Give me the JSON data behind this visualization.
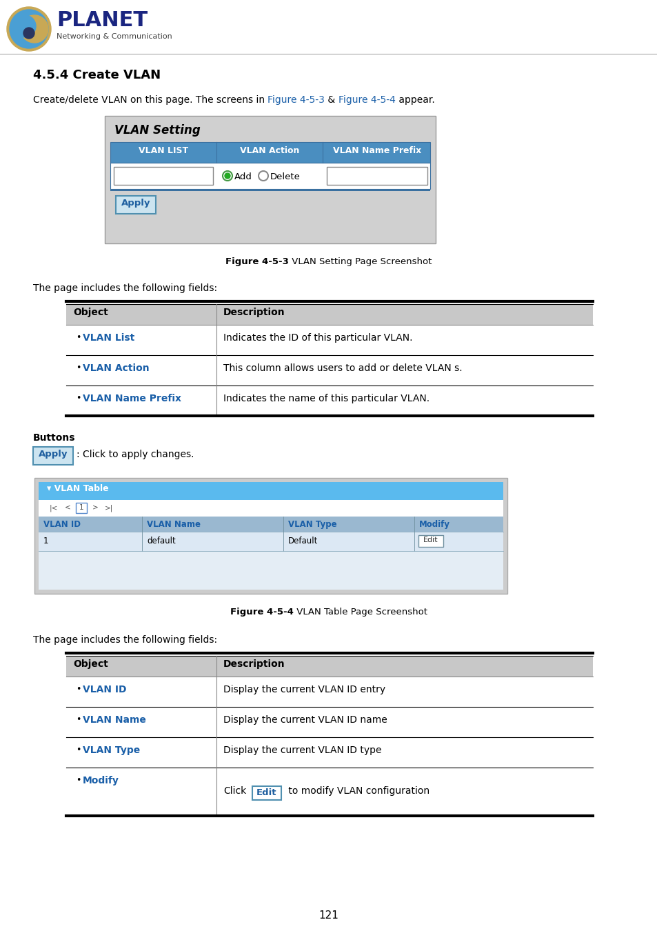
{
  "title": "4.5.4 Create VLAN",
  "intro_text": "Create/delete VLAN on this page. The screens in ",
  "intro_link1": "Figure 4-5-3",
  "intro_mid": " & ",
  "intro_link2": "Figure 4-5-4",
  "intro_end": " appear.",
  "vlan_setting_title": "VLAN Setting",
  "vlan_setting_cols": [
    "VLAN LIST",
    "VLAN Action",
    "VLAN Name Prefix"
  ],
  "fig1_caption_bold": "Figure 4-5-3",
  "fig1_caption_rest": " VLAN Setting Page Screenshot",
  "fields_text": "The page includes the following fields:",
  "table1_headers": [
    "Object",
    "Description"
  ],
  "table1_rows": [
    [
      "VLAN List",
      "Indicates the ID of this particular VLAN."
    ],
    [
      "VLAN Action",
      "This column allows users to add or delete VLAN s."
    ],
    [
      "VLAN Name Prefix",
      "Indicates the name of this particular VLAN."
    ]
  ],
  "buttons_title": "Buttons",
  "apply_text": ": Click to apply changes.",
  "vlan_table_title": "▾ VLAN Table",
  "vlan_table_cols": [
    "VLAN ID",
    "VLAN Name",
    "VLAN Type",
    "Modify"
  ],
  "vlan_table_row": [
    "1",
    "default",
    "Default",
    "Edit"
  ],
  "fig2_caption_bold": "Figure 4-5-4",
  "fig2_caption_rest": " VLAN Table Page Screenshot",
  "fields_text2": "The page includes the following fields:",
  "table2_headers": [
    "Object",
    "Description"
  ],
  "table2_rows": [
    [
      "VLAN ID",
      "Display the current VLAN ID entry"
    ],
    [
      "VLAN Name",
      "Display the current VLAN ID name"
    ],
    [
      "VLAN Type",
      "Display the current VLAN ID type"
    ],
    [
      "Modify",
      ""
    ]
  ],
  "page_number": "121",
  "link_color": "#1a5fa8",
  "header_bg": "#c8c8c8",
  "vlan_setting_header_bg": "#4a8ec0",
  "vlan_outer_bg": "#d0d0d0",
  "vlan_inner_bg": "#e8e8e8",
  "vlan_table_header_bg": "#9ab8d0",
  "vlan_table_row_bg": "#dce8f4",
  "vlan_table_outer_bg": "#cccccc",
  "vlan_table_inner_bg": "#e4edf5",
  "vlan_blue_hdr_bg": "#5abaee",
  "apply_btn_bg": "#cce4f0",
  "apply_btn_border": "#5090b0",
  "apply_btn_text": "#2060a0"
}
